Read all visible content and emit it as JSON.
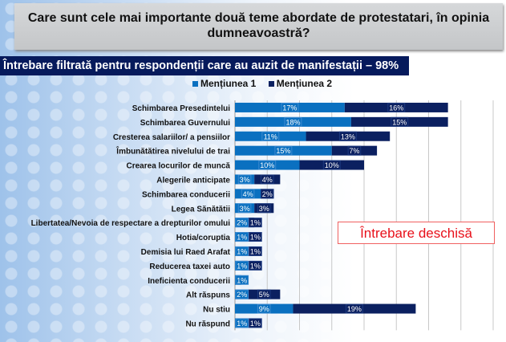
{
  "title": "Care sunt cele mai importante două teme abordate de protestatari, în opinia dumneavoastră?",
  "subtitle": "Întrebare filtrată pentru respondenții care au auzit de manifestații – 98%",
  "note": "Întrebare deschisă",
  "chart_data": {
    "type": "bar",
    "orientation": "horizontal",
    "stacked": true,
    "categories": [
      "Schimbarea Presedintelui",
      "Schimbarea Guvernului",
      "Cresterea salariilor/ a pensiilor",
      "Îmbunătătirea nivelului de trai",
      "Crearea locurilor de muncă",
      "Alegerile anticipate",
      "Schimbarea conducerii",
      "Legea Sănătătii",
      "Libertatea/Nevoia de respectare a drepturilor omului",
      "Hotia/coruptia",
      "Demisia lui Raed Arafat",
      "Reducerea taxei auto",
      "Ineficienta conducerii",
      "Alt răspuns",
      "Nu stiu",
      "Nu răspund"
    ],
    "series": [
      {
        "name": "Mențiunea 1",
        "color": "#0a70c0",
        "values": [
          17,
          18,
          11,
          15,
          10,
          3,
          4,
          3,
          2,
          1,
          1,
          1,
          1,
          2,
          9,
          1
        ]
      },
      {
        "name": "Mențiunea 2",
        "color": "#0b2060",
        "values": [
          16,
          15,
          13,
          7,
          10,
          4,
          2,
          3,
          1,
          1,
          1,
          1,
          null,
          5,
          19,
          1
        ]
      }
    ],
    "xlim": [
      0,
      40
    ],
    "grid": true,
    "legend": "top"
  }
}
